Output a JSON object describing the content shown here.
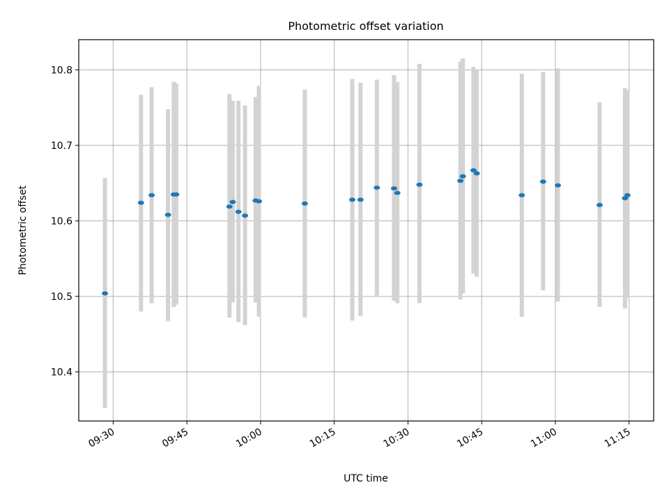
{
  "chart_data": {
    "type": "scatter",
    "title": "Photometric offset variation",
    "xlabel": "UTC time",
    "ylabel": "Photometric offset",
    "x_unit": "minutes after 09:00 UTC",
    "xlim": [
      "09:23",
      "11:20"
    ],
    "ylim": [
      10.335,
      10.84
    ],
    "x_ticks": [
      "09:30",
      "09:45",
      "10:00",
      "10:15",
      "10:30",
      "10:45",
      "11:00",
      "11:15"
    ],
    "y_ticks": [
      "10.4",
      "10.5",
      "10.6",
      "10.7",
      "10.8"
    ],
    "grid": true,
    "colors": {
      "points": "#1f77b4",
      "errorbars": "#d3d3d3",
      "grid": "#b0b0b0"
    },
    "series": [
      {
        "points": [
          {
            "t": "09:28:20",
            "y": 10.504,
            "ymin": 10.352,
            "ymax": 10.657
          },
          {
            "t": "09:35:40",
            "y": 10.624,
            "ymin": 10.48,
            "ymax": 10.767
          },
          {
            "t": "09:37:50",
            "y": 10.634,
            "ymin": 10.491,
            "ymax": 10.777
          },
          {
            "t": "09:41:10",
            "y": 10.608,
            "ymin": 10.467,
            "ymax": 10.748
          },
          {
            "t": "09:42:20",
            "y": 10.635,
            "ymin": 10.486,
            "ymax": 10.784
          },
          {
            "t": "09:42:50",
            "y": 10.635,
            "ymin": 10.489,
            "ymax": 10.782
          },
          {
            "t": "09:53:40",
            "y": 10.619,
            "ymin": 10.472,
            "ymax": 10.768
          },
          {
            "t": "09:54:20",
            "y": 10.625,
            "ymin": 10.492,
            "ymax": 10.759
          },
          {
            "t": "09:55:30",
            "y": 10.612,
            "ymin": 10.466,
            "ymax": 10.759
          },
          {
            "t": "09:56:50",
            "y": 10.607,
            "ymin": 10.462,
            "ymax": 10.753
          },
          {
            "t": "09:59:00",
            "y": 10.627,
            "ymin": 10.492,
            "ymax": 10.764
          },
          {
            "t": "09:59:40",
            "y": 10.626,
            "ymin": 10.473,
            "ymax": 10.779
          },
          {
            "t": "10:09:00",
            "y": 10.623,
            "ymin": 10.472,
            "ymax": 10.774
          },
          {
            "t": "10:18:40",
            "y": 10.628,
            "ymin": 10.468,
            "ymax": 10.788
          },
          {
            "t": "10:20:20",
            "y": 10.628,
            "ymin": 10.474,
            "ymax": 10.783
          },
          {
            "t": "10:23:40",
            "y": 10.644,
            "ymin": 10.501,
            "ymax": 10.787
          },
          {
            "t": "10:27:10",
            "y": 10.643,
            "ymin": 10.494,
            "ymax": 10.793
          },
          {
            "t": "10:27:50",
            "y": 10.637,
            "ymin": 10.491,
            "ymax": 10.784
          },
          {
            "t": "10:32:20",
            "y": 10.648,
            "ymin": 10.491,
            "ymax": 10.808
          },
          {
            "t": "10:40:40",
            "y": 10.653,
            "ymin": 10.496,
            "ymax": 10.811
          },
          {
            "t": "10:41:10",
            "y": 10.659,
            "ymin": 10.504,
            "ymax": 10.815
          },
          {
            "t": "10:43:20",
            "y": 10.667,
            "ymin": 10.53,
            "ymax": 10.804
          },
          {
            "t": "10:44:00",
            "y": 10.663,
            "ymin": 10.526,
            "ymax": 10.8
          },
          {
            "t": "10:53:10",
            "y": 10.634,
            "ymin": 10.473,
            "ymax": 10.795
          },
          {
            "t": "10:57:30",
            "y": 10.652,
            "ymin": 10.508,
            "ymax": 10.797
          },
          {
            "t": "11:00:30",
            "y": 10.647,
            "ymin": 10.493,
            "ymax": 10.802
          },
          {
            "t": "11:09:00",
            "y": 10.621,
            "ymin": 10.486,
            "ymax": 10.757
          },
          {
            "t": "11:14:10",
            "y": 10.63,
            "ymin": 10.484,
            "ymax": 10.776
          },
          {
            "t": "11:14:40",
            "y": 10.634,
            "ymin": 10.498,
            "ymax": 10.773
          }
        ]
      }
    ]
  }
}
